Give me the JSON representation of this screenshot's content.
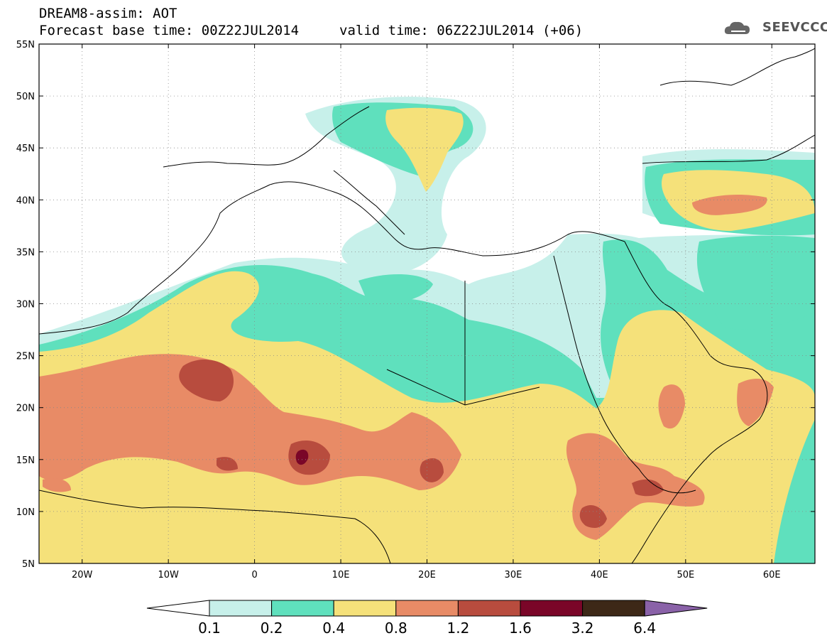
{
  "header": {
    "title_line1": "DREAM8-assim: AOT",
    "title_line2": "Forecast base time: 00Z22JUL2014",
    "valid_time": "valid time: 06Z22JUL2014 (+06)"
  },
  "logo": {
    "text": "SEEVCCC",
    "icon": "cloud-icon"
  },
  "map": {
    "projection": "lat-lon",
    "lon_range": [
      -25,
      65
    ],
    "lat_range": [
      5,
      55
    ],
    "lat_labels": [
      "55N",
      "50N",
      "45N",
      "40N",
      "35N",
      "30N",
      "25N",
      "20N",
      "15N",
      "10N",
      "5N"
    ],
    "lat_values": [
      55,
      50,
      45,
      40,
      35,
      30,
      25,
      20,
      15,
      10,
      5
    ],
    "lon_labels": [
      "20W",
      "10W",
      "0",
      "10E",
      "20E",
      "30E",
      "40E",
      "50E",
      "60E"
    ],
    "lon_values": [
      -20,
      -10,
      0,
      10,
      20,
      30,
      40,
      50,
      60
    ],
    "gridlines": "dotted"
  },
  "colorbar": {
    "levels": [
      "0.1",
      "0.2",
      "0.4",
      "0.8",
      "1.2",
      "1.6",
      "3.2",
      "6.4"
    ],
    "colors": [
      "#c7f0ea",
      "#5fe0bd",
      "#f5e17a",
      "#e88b66",
      "#b84c3e",
      "#7a0628",
      "#3d2817",
      "#8a62a8"
    ],
    "under_color": "#ffffff"
  }
}
